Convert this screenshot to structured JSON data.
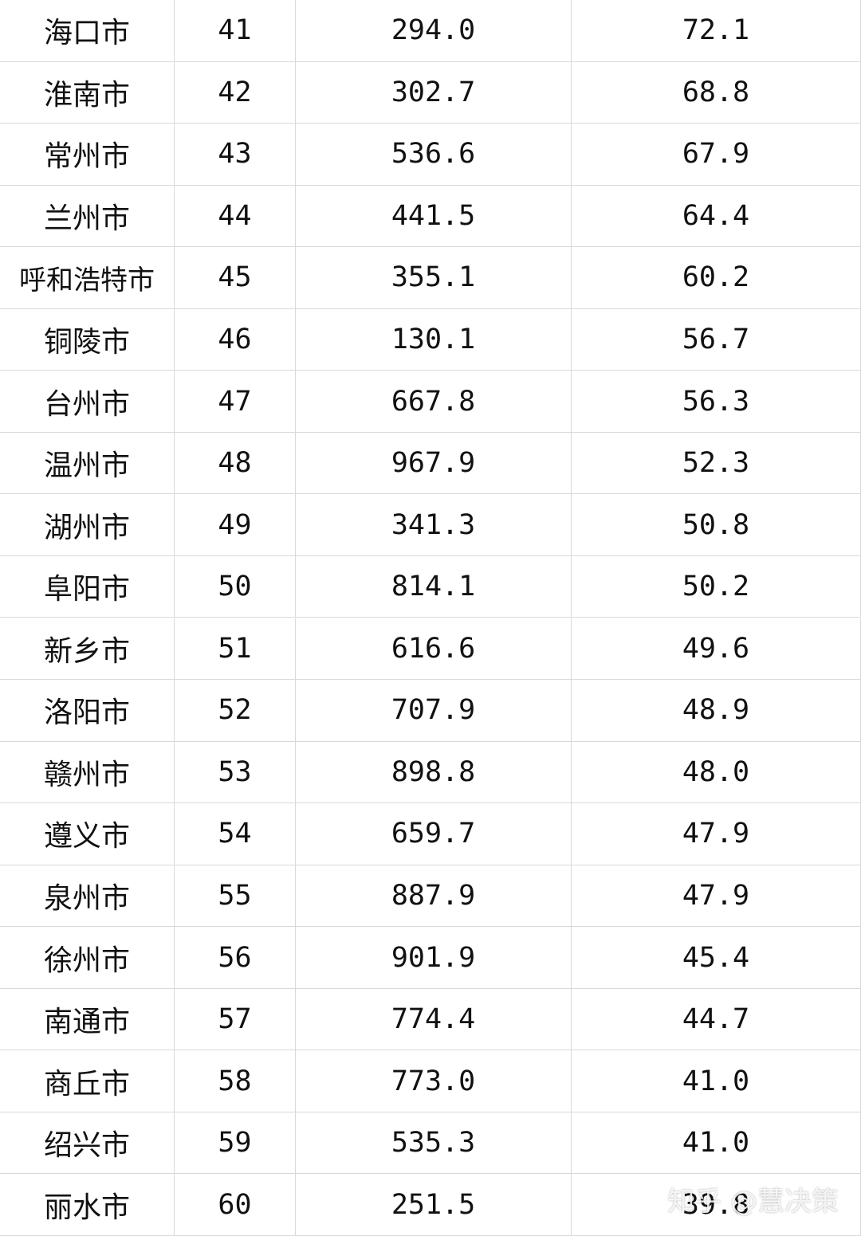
{
  "table": {
    "rows": [
      [
        "海口市",
        "41",
        "294.0",
        "72.1"
      ],
      [
        "淮南市",
        "42",
        "302.7",
        "68.8"
      ],
      [
        "常州市",
        "43",
        "536.6",
        "67.9"
      ],
      [
        "兰州市",
        "44",
        "441.5",
        "64.4"
      ],
      [
        "呼和浩特市",
        "45",
        "355.1",
        "60.2"
      ],
      [
        "铜陵市",
        "46",
        "130.1",
        "56.7"
      ],
      [
        "台州市",
        "47",
        "667.8",
        "56.3"
      ],
      [
        "温州市",
        "48",
        "967.9",
        "52.3"
      ],
      [
        "湖州市",
        "49",
        "341.3",
        "50.8"
      ],
      [
        "阜阳市",
        "50",
        "814.1",
        "50.2"
      ],
      [
        "新乡市",
        "51",
        "616.6",
        "49.6"
      ],
      [
        "洛阳市",
        "52",
        "707.9",
        "48.9"
      ],
      [
        "赣州市",
        "53",
        "898.8",
        "48.0"
      ],
      [
        "遵义市",
        "54",
        "659.7",
        "47.9"
      ],
      [
        "泉州市",
        "55",
        "887.9",
        "47.9"
      ],
      [
        "徐州市",
        "56",
        "901.9",
        "45.4"
      ],
      [
        "南通市",
        "57",
        "774.4",
        "44.7"
      ],
      [
        "商丘市",
        "58",
        "773.0",
        "41.0"
      ],
      [
        "绍兴市",
        "59",
        "535.3",
        "41.0"
      ],
      [
        "丽水市",
        "60",
        "251.5",
        "39.8"
      ]
    ]
  },
  "watermark": "知乎 @慧决策"
}
